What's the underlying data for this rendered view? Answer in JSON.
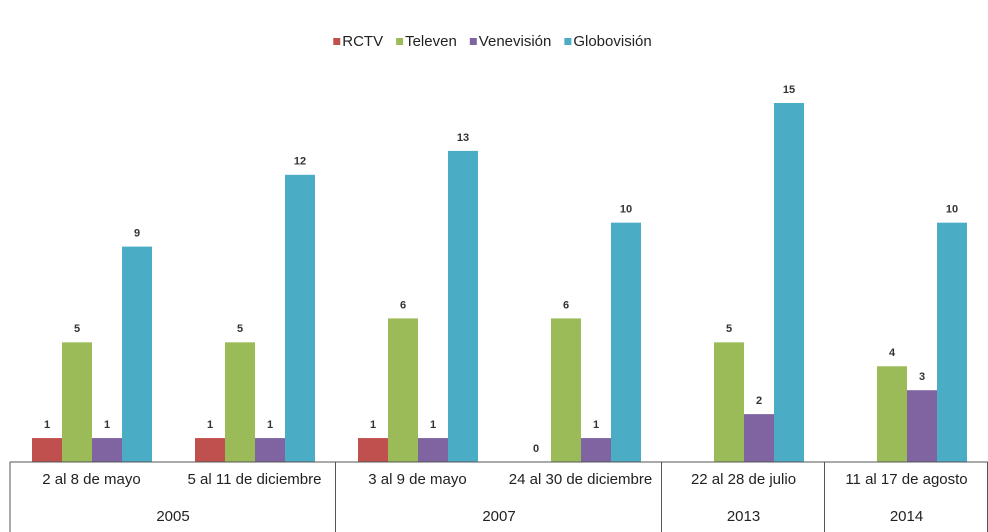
{
  "chart_data": {
    "type": "bar",
    "categories": [
      "2 al 8 de mayo",
      "5 al 11 de diciembre",
      "3 al 9 de mayo",
      "24 al 30 de diciembre",
      "22 al 28 de julio",
      "11 al 17 de agosto"
    ],
    "category_groups": [
      {
        "label": "2005",
        "span": 2
      },
      {
        "label": "2007",
        "span": 2
      },
      {
        "label": "2013",
        "span": 1
      },
      {
        "label": "2014",
        "span": 1
      }
    ],
    "series": [
      {
        "name": "RCTV",
        "color": "#c0504d",
        "values": [
          1,
          1,
          1,
          0,
          null,
          null
        ]
      },
      {
        "name": "Televen",
        "color": "#9bbb59",
        "values": [
          5,
          5,
          6,
          6,
          5,
          4
        ]
      },
      {
        "name": "Venevisión",
        "color": "#8064a2",
        "values": [
          1,
          1,
          1,
          1,
          2,
          3
        ]
      },
      {
        "name": "Globovisión",
        "color": "#4bacc6",
        "values": [
          9,
          12,
          13,
          10,
          15,
          10
        ]
      }
    ],
    "legend": "top"
  }
}
